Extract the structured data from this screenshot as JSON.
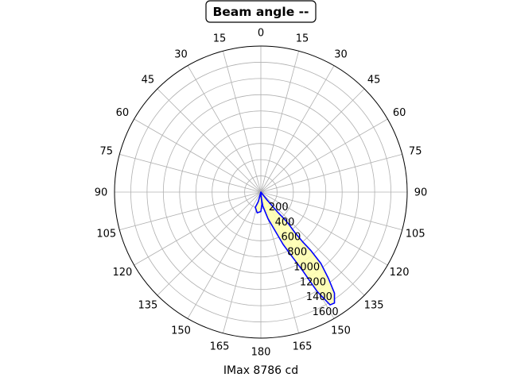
{
  "chart_data": {
    "type": "polar-line",
    "title": "Beam angle --",
    "xlabel": "IMax 8786 cd",
    "angle_tick_labels": [
      "180",
      "165",
      "150",
      "135",
      "120",
      "105",
      "90",
      "75",
      "60",
      "45",
      "30",
      "15",
      "0",
      "15",
      "30",
      "45",
      "60",
      "75",
      "90",
      "105",
      "120",
      "135",
      "150",
      "165"
    ],
    "angle_tick_degrees": [
      0,
      15,
      30,
      45,
      60,
      75,
      90,
      105,
      120,
      135,
      150,
      165,
      180,
      195,
      210,
      225,
      240,
      255,
      270,
      285,
      300,
      315,
      330,
      345
    ],
    "radial_ticks": [
      200,
      400,
      600,
      800,
      1000,
      1200,
      1400,
      1600
    ],
    "radial_tick_labels": [
      "200",
      "400",
      "600",
      "800",
      "1000",
      "1200",
      "1400",
      "1600"
    ],
    "rlim": [
      0,
      1800
    ],
    "grid": true,
    "series": [
      {
        "color": "#0000ff",
        "fill": "#ffffb0",
        "points": [
          {
            "angle": 0,
            "r": 0
          },
          {
            "angle": 3,
            "r": 60
          },
          {
            "angle": 8,
            "r": 175
          },
          {
            "angle": 15,
            "r": 340
          },
          {
            "angle": 20,
            "r": 500
          },
          {
            "angle": 23,
            "r": 700
          },
          {
            "angle": 26,
            "r": 900
          },
          {
            "angle": 28,
            "r": 1100
          },
          {
            "angle": 29,
            "r": 1290
          },
          {
            "angle": 29.5,
            "r": 1410
          },
          {
            "angle": 31.5,
            "r": 1630
          },
          {
            "angle": 33.5,
            "r": 1640
          },
          {
            "angle": 36,
            "r": 1540
          },
          {
            "angle": 38,
            "r": 1350
          },
          {
            "angle": 40,
            "r": 1150
          },
          {
            "angle": 40.5,
            "r": 950
          },
          {
            "angle": 40,
            "r": 800
          },
          {
            "angle": 40,
            "r": 650
          },
          {
            "angle": 41,
            "r": 520
          },
          {
            "angle": 41,
            "r": 450
          },
          {
            "angle": 40,
            "r": 330
          },
          {
            "angle": 38,
            "r": 120
          },
          {
            "angle": 0,
            "r": 0
          },
          {
            "angle": 345,
            "r": 120
          },
          {
            "angle": 340,
            "r": 200
          },
          {
            "angle": 350,
            "r": 260
          },
          {
            "angle": 360,
            "r": 240
          },
          {
            "angle": 5,
            "r": 150
          },
          {
            "angle": 0,
            "r": 0
          }
        ]
      }
    ]
  }
}
